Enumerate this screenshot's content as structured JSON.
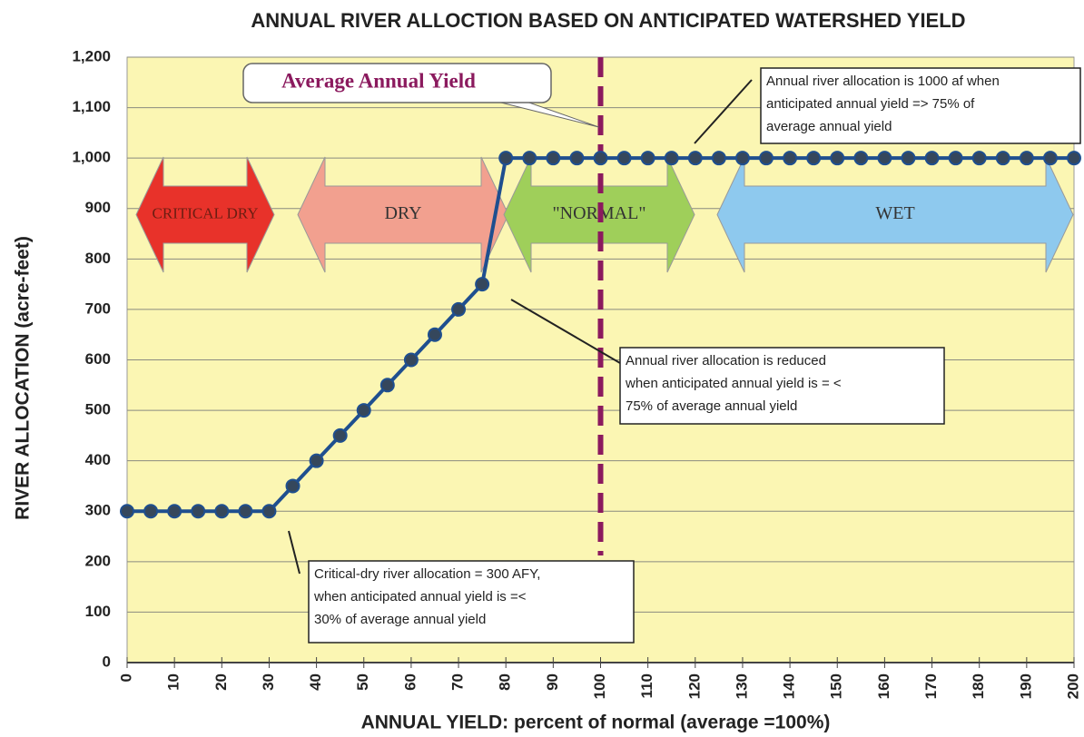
{
  "chart_data": {
    "type": "line",
    "title": "ANNUAL RIVER ALLOCTION BASED ON ANTICIPATED WATERSHED YIELD",
    "x_label": "ANNUAL YIELD: percent of normal (average =100%)",
    "y_label": "RIVER ALLOCATION (acre-feet)",
    "x": [
      0,
      5,
      10,
      15,
      20,
      25,
      30,
      35,
      40,
      45,
      50,
      55,
      60,
      65,
      70,
      75,
      80,
      85,
      90,
      95,
      100,
      105,
      110,
      115,
      120,
      125,
      130,
      135,
      140,
      145,
      150,
      155,
      160,
      165,
      170,
      175,
      180,
      185,
      190,
      195,
      200
    ],
    "series": [
      {
        "name": "River allocation",
        "color": "#1f4f8f",
        "values": [
          300,
          300,
          300,
          300,
          300,
          300,
          300,
          350,
          400,
          450,
          500,
          550,
          600,
          650,
          700,
          750,
          1000,
          1000,
          1000,
          1000,
          1000,
          1000,
          1000,
          1000,
          1000,
          1000,
          1000,
          1000,
          1000,
          1000,
          1000,
          1000,
          1000,
          1000,
          1000,
          1000,
          1000,
          1000,
          1000,
          1000,
          1000
        ]
      }
    ],
    "xlim": [
      0,
      200
    ],
    "xticks": [
      0,
      10,
      20,
      30,
      40,
      50,
      60,
      70,
      80,
      90,
      100,
      110,
      120,
      130,
      140,
      150,
      160,
      170,
      180,
      190,
      200
    ],
    "ylim": [
      0,
      1200
    ],
    "yticks": [
      0,
      100,
      200,
      300,
      400,
      500,
      600,
      700,
      800,
      900,
      {
        "value": 1000,
        "label": "1,000"
      },
      {
        "value": 1100,
        "label": "1,100"
      },
      {
        "value": 1200,
        "label": "1,200"
      }
    ],
    "grid": true,
    "reference_line": {
      "x": 100,
      "label": "Average Annual Yield",
      "color": "#8b1a5e"
    },
    "zones": [
      {
        "label": "CRITICAL DRY",
        "color": "#e8322a"
      },
      {
        "label": "DRY",
        "color": "#f2a08f"
      },
      {
        "label": "\"NORMAL\"",
        "color": "#9fcf5a"
      },
      {
        "label": "WET",
        "color": "#8ec9ee"
      }
    ],
    "callouts": [
      {
        "lines": [
          "Annual river allocation is 1000 af when",
          "anticipated annual yield => 75% of",
          "average annual yield"
        ]
      },
      {
        "lines": [
          "Annual river allocation is reduced",
          "when anticipated annual yield is = <",
          "75% of average annual yield"
        ]
      },
      {
        "lines": [
          "Critical-dry river allocation = 300 AFY,",
          "when anticipated annual yield is =<",
          "30% of average annual yield"
        ]
      }
    ]
  }
}
